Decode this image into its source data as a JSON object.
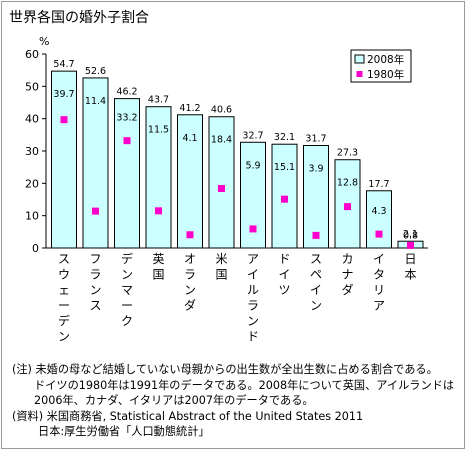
{
  "chart_data": {
    "type": "bar",
    "title": "世界各国の婚外子割合",
    "ylabel": "%",
    "ylim": [
      0,
      60
    ],
    "yticks": [
      0,
      10,
      20,
      30,
      40,
      50,
      60
    ],
    "grid": false,
    "legend_position": "top-right",
    "categories": [
      "スウェーデン",
      "フランス",
      "デンマーク",
      "英国",
      "オランダ",
      "米国",
      "アイルランド",
      "ドイツ",
      "スペイン",
      "カナダ",
      "イタリア",
      "日本"
    ],
    "series": [
      {
        "name": "2008年",
        "mark": "bar",
        "color": "#ccffff",
        "values": [
          54.7,
          52.6,
          46.2,
          43.7,
          41.2,
          40.6,
          32.7,
          32.1,
          31.7,
          27.3,
          17.7,
          2.1
        ]
      },
      {
        "name": "1980年",
        "mark": "square-marker",
        "color": "#ff00cc",
        "values": [
          39.7,
          11.4,
          33.2,
          11.5,
          4.1,
          18.4,
          5.9,
          15.1,
          3.9,
          12.8,
          4.3,
          0.8
        ]
      }
    ]
  },
  "notes": [
    "(注) 未婚の母など結婚していない母親からの出生数が全出生数に占める割合である。",
    "ドイツの1980年は1991年のデータである。2008年について英国、アイルランドは",
    "2006年、カナダ、イタリアは2007年のデータである。",
    "(資料) 米国商務省, Statistical Abstract of the United States 2011",
    "日本:厚生労働省「人口動態統計」"
  ]
}
